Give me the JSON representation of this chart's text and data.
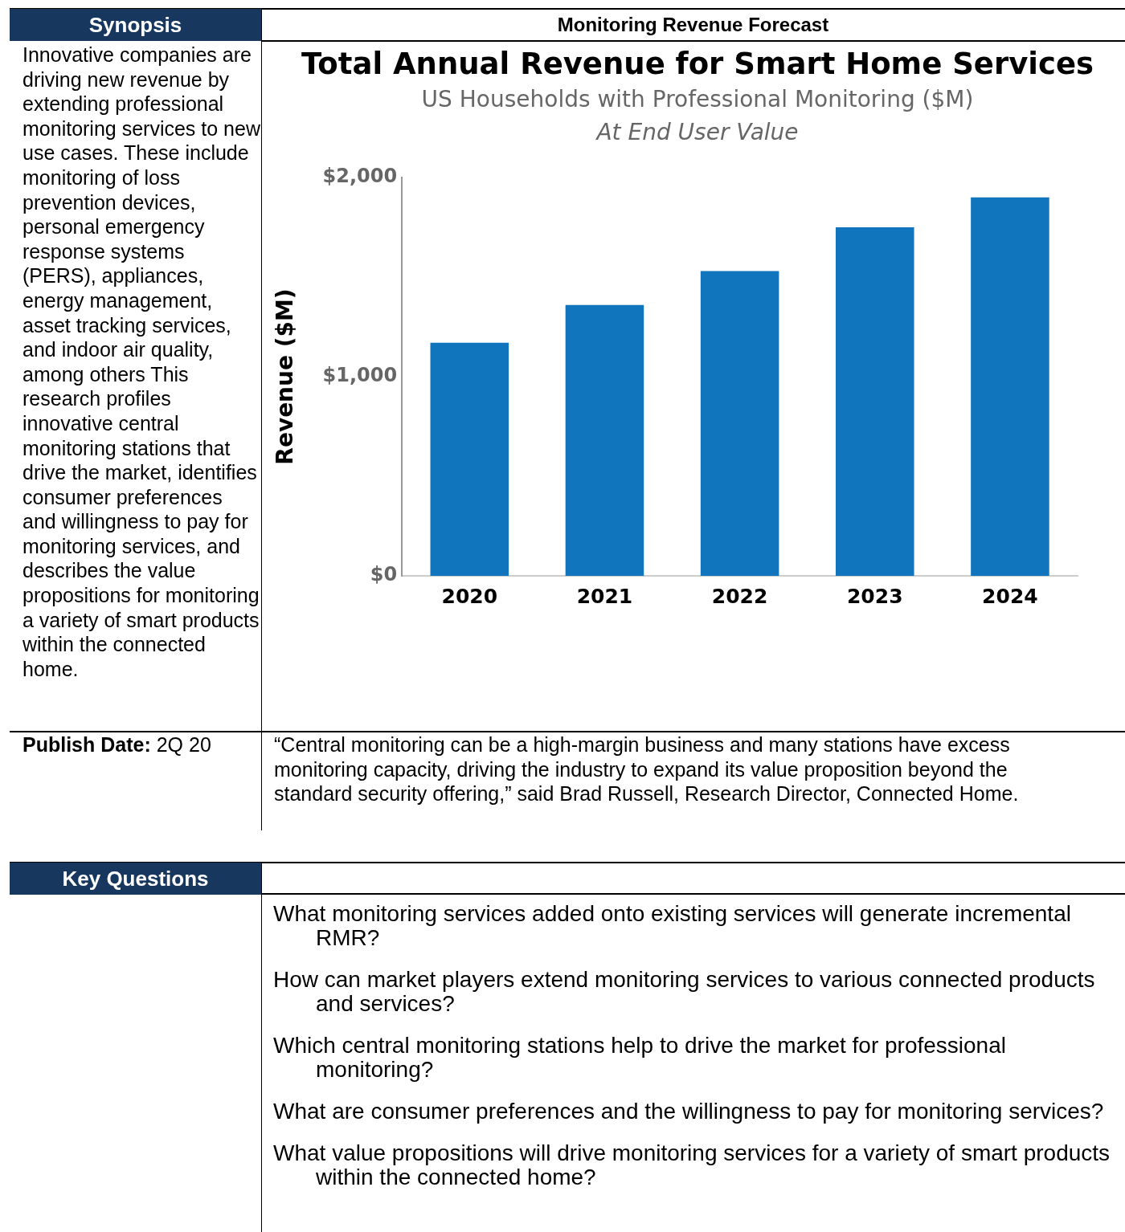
{
  "chart_data": {
    "type": "bar",
    "title": "Total Annual Revenue for Smart Home Services",
    "subtitle": "US Households with Professional Monitoring ($M)",
    "ylabel": "Revenue ($M)",
    "categories": [
      "2020",
      "2021",
      "2022",
      "2023",
      "2024"
    ],
    "values": [
      1170,
      1360,
      1530,
      1750,
      1900
    ],
    "color": "#1175bd",
    "ylim": [
      0,
      2000
    ],
    "yticks": [
      {
        "value": 0,
        "label": "$0"
      },
      {
        "value": 1000,
        "label": "$1,000"
      },
      {
        "value": 2000,
        "label": "$2,000"
      }
    ],
    "grid": false,
    "annotations": [
      "Synopsis",
      "Monitoring Revenue Forecast",
      "Innovative companies are driving new revenue by extending professional monitoring services to new use cases. These include monitoring of loss prevention devices, personal emergency response systems (PERS), appliances, energy management, asset tracking services, and indoor air quality, among others This research profiles innovative central monitoring stations that drive the market, identifies consumer preferences and willingness to pay for monitoring services, and describes the value propositions for monitoring a variety of smart products within the connected home.",
      "Publish Date: 2Q 20",
      "“Central monitoring can be a high-margin business and many stations have excess monitoring capacity, driving the industry to expand its value proposition beyond the standard security offering,” said Brad Russell, Research Director, Connected Home.",
      "Key Questions",
      "What monitoring services added onto existing services will generate incremental RMR?",
      "How can market players extend monitoring services to various connected products and services?",
      "Which central monitoring stations help to drive the market for professional monitoring?",
      "What are consumer preferences and the willingness to pay for monitoring services?",
      "What value propositions will drive monitoring services for a variety of smart products within the connected home?",
      "At End User Value"
    ]
  }
}
